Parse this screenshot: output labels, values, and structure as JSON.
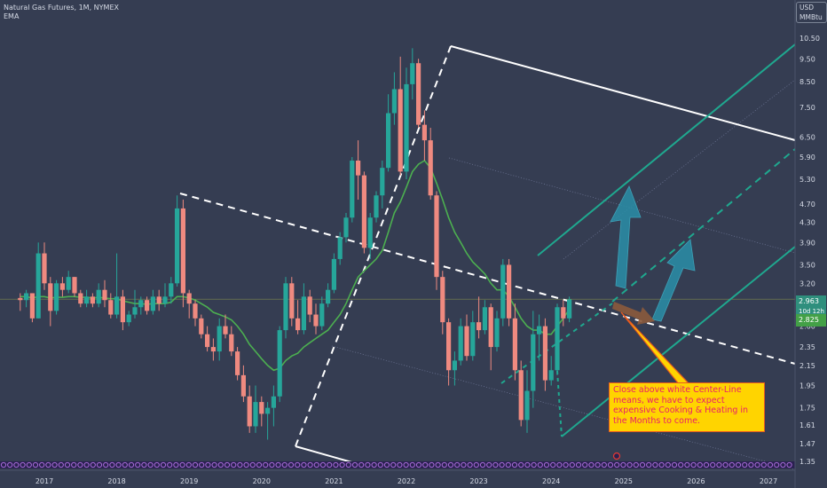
{
  "header": {
    "symbol_line": "Natural Gas Futures, 1M, NYMEX",
    "indicator": "EMA"
  },
  "axis": {
    "unit_top": "USD",
    "unit_bottom": "MMBtu",
    "current_price": "2.963",
    "countdown": "10d 12h",
    "ema_value": "2.825"
  },
  "annotation": {
    "text": "Close above white Center-Line means, we have to expect expensive Cooking & Heating in the Months to come."
  },
  "colors": {
    "background": "#353d52",
    "up_candle": "#26a69a",
    "down_candle": "#ef8a80",
    "ema": "#4caf50",
    "pitchfork": "#1fa88f",
    "white_lines": "#ffffff",
    "note_bg": "#ffd400",
    "note_text": "#e81f6a",
    "arrows": "#2a8fa8",
    "brown_arrow": "#8b5a3c"
  },
  "chart_data": {
    "type": "candlestick",
    "title": "Natural Gas Futures, 1M, NYMEX",
    "y_scale": "log",
    "ylim": [
      1.3,
      11.5
    ],
    "y_ticks": [
      10.5,
      9.5,
      8.5,
      7.5,
      6.5,
      5.9,
      5.3,
      4.7,
      4.3,
      3.9,
      3.5,
      3.2,
      2.963,
      2.825,
      2.6,
      2.35,
      2.15,
      1.95,
      1.75,
      1.61,
      1.47,
      1.35
    ],
    "x_ticks": [
      "2017",
      "2018",
      "2019",
      "2020",
      "2021",
      "2022",
      "2023",
      "2024",
      "2025",
      "2026",
      "2027"
    ],
    "start": "2016-09",
    "candles": [
      [
        2.98,
        3.05,
        2.8,
        2.95
      ],
      [
        2.95,
        3.1,
        2.85,
        3.05
      ],
      [
        3.05,
        3.05,
        2.65,
        2.7
      ],
      [
        2.7,
        3.9,
        2.7,
        3.7
      ],
      [
        3.7,
        3.9,
        3.1,
        3.2
      ],
      [
        3.2,
        3.3,
        2.6,
        2.8
      ],
      [
        2.8,
        3.25,
        2.75,
        3.2
      ],
      [
        3.2,
        3.3,
        3.0,
        3.1
      ],
      [
        3.1,
        3.4,
        3.05,
        3.3
      ],
      [
        3.3,
        3.3,
        3.0,
        3.05
      ],
      [
        3.05,
        3.1,
        2.85,
        2.9
      ],
      [
        2.9,
        3.1,
        2.85,
        3.0
      ],
      [
        3.0,
        3.05,
        2.85,
        2.9
      ],
      [
        2.9,
        3.2,
        2.85,
        3.1
      ],
      [
        3.1,
        3.25,
        2.85,
        2.95
      ],
      [
        2.95,
        3.05,
        2.7,
        2.75
      ],
      [
        2.75,
        3.7,
        2.7,
        3.0
      ],
      [
        3.0,
        3.1,
        2.55,
        2.65
      ],
      [
        2.65,
        2.8,
        2.6,
        2.75
      ],
      [
        2.75,
        3.1,
        2.7,
        2.85
      ],
      [
        2.85,
        3.0,
        2.75,
        2.95
      ],
      [
        2.95,
        3.0,
        2.75,
        2.8
      ],
      [
        2.8,
        3.1,
        2.75,
        3.0
      ],
      [
        3.0,
        3.1,
        2.8,
        2.9
      ],
      [
        2.9,
        3.2,
        2.85,
        3.0
      ],
      [
        3.0,
        3.3,
        2.9,
        3.2
      ],
      [
        3.2,
        4.9,
        3.15,
        4.6
      ],
      [
        4.6,
        4.8,
        2.85,
        3.05
      ],
      [
        3.05,
        3.1,
        2.7,
        2.9
      ],
      [
        2.9,
        2.95,
        2.6,
        2.7
      ],
      [
        2.7,
        2.75,
        2.45,
        2.5
      ],
      [
        2.5,
        2.6,
        2.3,
        2.35
      ],
      [
        2.35,
        2.45,
        2.2,
        2.3
      ],
      [
        2.3,
        2.7,
        2.2,
        2.6
      ],
      [
        2.6,
        2.75,
        2.45,
        2.5
      ],
      [
        2.5,
        2.6,
        2.25,
        2.3
      ],
      [
        2.3,
        2.35,
        2.0,
        2.05
      ],
      [
        2.05,
        2.15,
        1.8,
        1.85
      ],
      [
        1.85,
        1.95,
        1.55,
        1.6
      ],
      [
        1.6,
        1.95,
        1.55,
        1.8
      ],
      [
        1.8,
        1.85,
        1.6,
        1.7
      ],
      [
        1.7,
        1.8,
        1.5,
        1.75
      ],
      [
        1.75,
        1.95,
        1.6,
        1.85
      ],
      [
        1.85,
        2.6,
        1.8,
        2.55
      ],
      [
        2.55,
        3.3,
        2.45,
        3.2
      ],
      [
        3.2,
        3.3,
        2.6,
        2.7
      ],
      [
        2.7,
        2.95,
        2.5,
        2.55
      ],
      [
        2.55,
        3.2,
        2.5,
        3.0
      ],
      [
        3.0,
        3.1,
        2.65,
        2.75
      ],
      [
        2.75,
        2.9,
        2.5,
        2.6
      ],
      [
        2.6,
        3.0,
        2.55,
        2.9
      ],
      [
        2.9,
        3.2,
        2.85,
        3.1
      ],
      [
        3.1,
        3.7,
        3.05,
        3.6
      ],
      [
        3.6,
        4.1,
        3.5,
        4.0
      ],
      [
        4.0,
        4.5,
        3.9,
        4.4
      ],
      [
        4.4,
        5.9,
        4.3,
        5.8
      ],
      [
        5.8,
        6.4,
        4.8,
        5.4
      ],
      [
        5.4,
        5.5,
        3.7,
        3.8
      ],
      [
        3.8,
        4.5,
        3.6,
        4.4
      ],
      [
        4.4,
        5.0,
        4.3,
        4.9
      ],
      [
        4.9,
        5.8,
        4.6,
        5.6
      ],
      [
        5.6,
        8.0,
        5.5,
        7.3
      ],
      [
        7.3,
        8.9,
        6.9,
        8.2
      ],
      [
        8.2,
        9.6,
        5.4,
        5.5
      ],
      [
        5.5,
        9.1,
        5.3,
        8.4
      ],
      [
        8.4,
        10.0,
        7.8,
        9.3
      ],
      [
        9.3,
        9.5,
        6.8,
        6.9
      ],
      [
        6.9,
        7.4,
        5.8,
        6.4
      ],
      [
        6.4,
        6.8,
        4.8,
        4.9
      ],
      [
        4.9,
        5.0,
        3.1,
        3.3
      ],
      [
        3.3,
        3.4,
        2.5,
        2.65
      ],
      [
        2.65,
        2.7,
        1.95,
        2.1
      ],
      [
        2.1,
        2.3,
        1.95,
        2.2
      ],
      [
        2.2,
        2.7,
        2.15,
        2.6
      ],
      [
        2.6,
        2.75,
        2.2,
        2.25
      ],
      [
        2.25,
        2.8,
        2.2,
        2.65
      ],
      [
        2.65,
        3.0,
        2.45,
        2.55
      ],
      [
        2.55,
        2.95,
        2.5,
        2.85
      ],
      [
        2.85,
        2.9,
        2.1,
        2.35
      ],
      [
        2.35,
        2.8,
        2.3,
        2.7
      ],
      [
        2.7,
        3.6,
        2.6,
        3.5
      ],
      [
        3.5,
        3.6,
        2.6,
        2.7
      ],
      [
        2.7,
        2.9,
        2.0,
        2.1
      ],
      [
        2.1,
        2.2,
        1.6,
        1.65
      ],
      [
        1.65,
        2.1,
        1.55,
        1.9
      ],
      [
        1.9,
        2.8,
        1.75,
        2.5
      ],
      [
        2.5,
        2.75,
        2.2,
        2.6
      ],
      [
        2.6,
        2.7,
        1.9,
        2.0
      ],
      [
        2.0,
        2.25,
        1.95,
        2.1
      ],
      [
        2.1,
        2.9,
        2.05,
        2.85
      ],
      [
        2.85,
        2.95,
        2.6,
        2.7
      ],
      [
        2.7,
        3.0,
        2.65,
        2.96
      ]
    ],
    "ema": [
      3.0,
      3.0,
      2.98,
      3.0,
      3.0,
      2.98,
      2.99,
      2.99,
      3.0,
      3.0,
      2.99,
      2.99,
      2.98,
      2.99,
      2.98,
      2.97,
      2.97,
      2.94,
      2.92,
      2.9,
      2.9,
      2.89,
      2.9,
      2.9,
      2.9,
      2.92,
      3.0,
      3.0,
      2.98,
      2.95,
      2.9,
      2.85,
      2.78,
      2.75,
      2.72,
      2.68,
      2.6,
      2.5,
      2.38,
      2.3,
      2.22,
      2.15,
      2.1,
      2.12,
      2.2,
      2.25,
      2.28,
      2.35,
      2.4,
      2.45,
      2.5,
      2.55,
      2.65,
      2.75,
      2.9,
      3.1,
      3.3,
      3.4,
      3.5,
      3.6,
      3.75,
      4.1,
      4.5,
      4.75,
      5.1,
      5.5,
      5.7,
      5.8,
      5.6,
      5.2,
      4.8,
      4.4,
      4.1,
      3.9,
      3.7,
      3.55,
      3.45,
      3.35,
      3.2,
      3.1,
      3.1,
      3.0,
      2.85,
      2.7,
      2.6,
      2.55,
      2.55,
      2.5,
      2.5,
      2.6,
      2.7,
      2.82
    ]
  }
}
